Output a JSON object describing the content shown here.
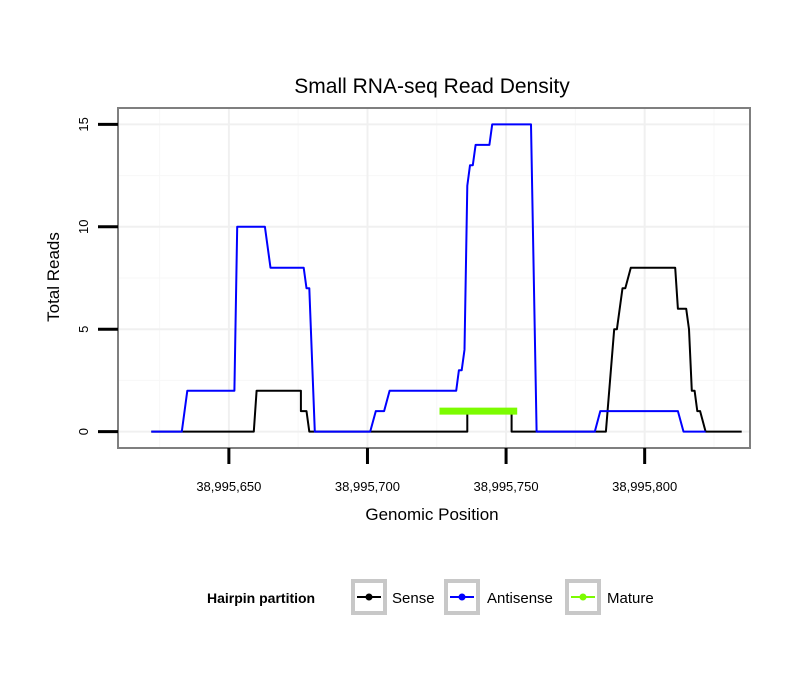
{
  "chart_data": {
    "type": "line",
    "title": "Small RNA-seq Read Density",
    "xlabel": "Genomic Position",
    "ylabel": "Total Reads",
    "xlim": [
      38995610,
      38995838
    ],
    "ylim": [
      -0.8,
      15.8
    ],
    "x_ticks": [
      38995650,
      38995700,
      38995750,
      38995800
    ],
    "x_tick_labels": [
      "38,995,650",
      "38,995,700",
      "38,995,750",
      "38,995,800"
    ],
    "y_ticks": [
      0,
      5,
      10,
      15
    ],
    "y_tick_labels": [
      "0",
      "5",
      "10",
      "15"
    ],
    "grid": true,
    "legend": {
      "title": "Hairpin partition",
      "position": "bottom",
      "entries": [
        {
          "label": "Sense",
          "color": "#000000"
        },
        {
          "label": "Antisense",
          "color": "#0000ff"
        },
        {
          "label": "Mature",
          "color": "#7cfc00"
        }
      ]
    },
    "series": [
      {
        "name": "Sense",
        "color": "#000000",
        "points": [
          [
            38995622,
            0
          ],
          [
            38995659,
            0
          ],
          [
            38995660,
            2
          ],
          [
            38995676,
            2
          ],
          [
            38995676,
            1
          ],
          [
            38995678,
            1
          ],
          [
            38995679,
            0
          ],
          [
            38995736,
            0
          ],
          [
            38995736,
            1
          ],
          [
            38995752,
            1
          ],
          [
            38995752,
            0
          ],
          [
            38995786,
            0
          ],
          [
            38995789,
            5
          ],
          [
            38995790,
            5
          ],
          [
            38995792,
            7
          ],
          [
            38995793,
            7
          ],
          [
            38995795,
            8
          ],
          [
            38995811,
            8
          ],
          [
            38995812,
            6
          ],
          [
            38995815,
            6
          ],
          [
            38995816,
            5
          ],
          [
            38995817,
            2
          ],
          [
            38995818,
            2
          ],
          [
            38995819,
            1
          ],
          [
            38995820,
            1
          ],
          [
            38995822,
            0
          ],
          [
            38995835,
            0
          ]
        ]
      },
      {
        "name": "Antisense",
        "color": "#0000ff",
        "points": [
          [
            38995622,
            0
          ],
          [
            38995633,
            0
          ],
          [
            38995635,
            2
          ],
          [
            38995652,
            2
          ],
          [
            38995653,
            10
          ],
          [
            38995663,
            10
          ],
          [
            38995665,
            8
          ],
          [
            38995677,
            8
          ],
          [
            38995678,
            7
          ],
          [
            38995679,
            7
          ],
          [
            38995681,
            0
          ],
          [
            38995701,
            0
          ],
          [
            38995703,
            1
          ],
          [
            38995706,
            1
          ],
          [
            38995708,
            2
          ],
          [
            38995732,
            2
          ],
          [
            38995733,
            3
          ],
          [
            38995734,
            3
          ],
          [
            38995735,
            4
          ],
          [
            38995736,
            12
          ],
          [
            38995737,
            13
          ],
          [
            38995738,
            13
          ],
          [
            38995739,
            14
          ],
          [
            38995744,
            14
          ],
          [
            38995745,
            15
          ],
          [
            38995759,
            15
          ],
          [
            38995761,
            0
          ],
          [
            38995782,
            0
          ],
          [
            38995784,
            1
          ],
          [
            38995812,
            1
          ],
          [
            38995814,
            0
          ],
          [
            38995822,
            0
          ]
        ]
      },
      {
        "name": "Mature",
        "color": "#7cfc00",
        "points": [
          [
            38995726,
            1
          ],
          [
            38995754,
            1
          ]
        ]
      }
    ]
  }
}
